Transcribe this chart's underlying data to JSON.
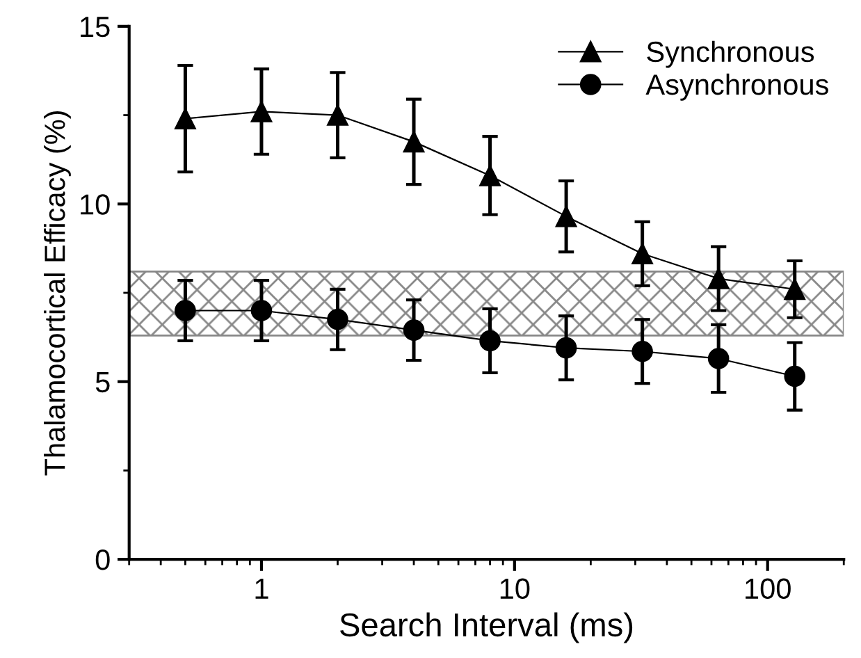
{
  "chart_data": {
    "type": "line",
    "xlabel": "Search Interval (ms)",
    "ylabel": "Thalamocortical Efficacy (%)",
    "x": [
      0.5,
      1,
      2,
      4,
      8,
      16,
      32,
      64,
      128
    ],
    "series": [
      {
        "name": "Synchronous",
        "color": "#000000",
        "marker": "triangle",
        "values": [
          12.4,
          12.6,
          12.5,
          11.75,
          10.8,
          9.65,
          8.6,
          7.9,
          7.6
        ],
        "errors": [
          1.5,
          1.2,
          1.2,
          1.2,
          1.1,
          1.0,
          0.9,
          0.9,
          0.8
        ]
      },
      {
        "name": "Asynchronous",
        "color": "#000000",
        "marker": "circle",
        "values": [
          7.0,
          7.0,
          6.75,
          6.45,
          6.15,
          5.95,
          5.85,
          5.65,
          5.15
        ],
        "errors": [
          0.85,
          0.85,
          0.85,
          0.85,
          0.9,
          0.9,
          0.9,
          0.95,
          0.95
        ]
      }
    ],
    "bands": [
      {
        "axis": "y",
        "from": 6.3,
        "to": 8.1,
        "color": "#888888"
      }
    ],
    "log": "x",
    "xlim": [
      0.3,
      200
    ],
    "xticks": [
      1,
      10,
      100
    ],
    "ylim": [
      0,
      15
    ],
    "yticks": [
      0,
      5,
      10,
      15
    ],
    "grid": false,
    "legend": "top right",
    "line_style": "solid"
  }
}
